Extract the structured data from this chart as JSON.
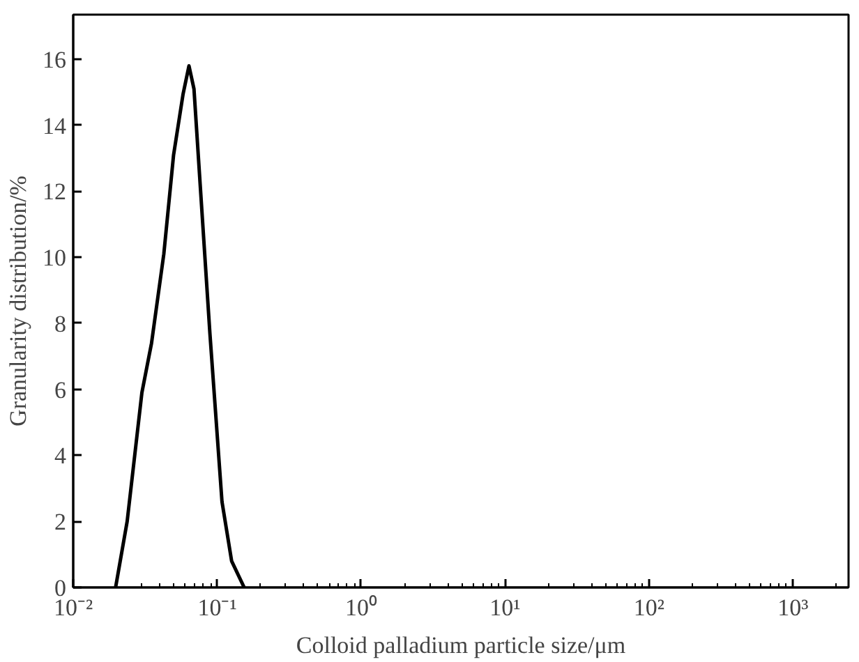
{
  "chart_data": {
    "type": "line",
    "xlabel": "Colloid palladium particle size/μm",
    "ylabel": "Granularity distribution/%",
    "log": "x",
    "grid": false,
    "marker": "none",
    "line_style": "solid",
    "xlim": [
      0.01,
      2430
    ],
    "ylim": [
      0,
      17.35
    ],
    "xticks": [
      {
        "value": 0.01,
        "label": "10⁻²"
      },
      {
        "value": 0.1,
        "label": "10⁻¹"
      },
      {
        "value": 1,
        "label": "10⁰"
      },
      {
        "value": 10,
        "label": "10¹"
      },
      {
        "value": 100,
        "label": "10²"
      },
      {
        "value": 1000,
        "label": "10³"
      }
    ],
    "yticks": [
      0,
      2,
      4,
      6,
      8,
      10,
      12,
      14,
      16
    ],
    "series": [
      {
        "color": "#000000",
        "x": [
          0.0197,
          0.0237,
          0.03,
          0.035,
          0.0426,
          0.0498,
          0.058,
          0.0637,
          0.069,
          0.0762,
          0.089,
          0.108,
          0.126,
          0.154
        ],
        "values": [
          0,
          2.0,
          5.9,
          7.4,
          10.1,
          13.1,
          14.95,
          15.8,
          15.1,
          12.2,
          7.7,
          2.6,
          0.8,
          0
        ]
      }
    ]
  }
}
